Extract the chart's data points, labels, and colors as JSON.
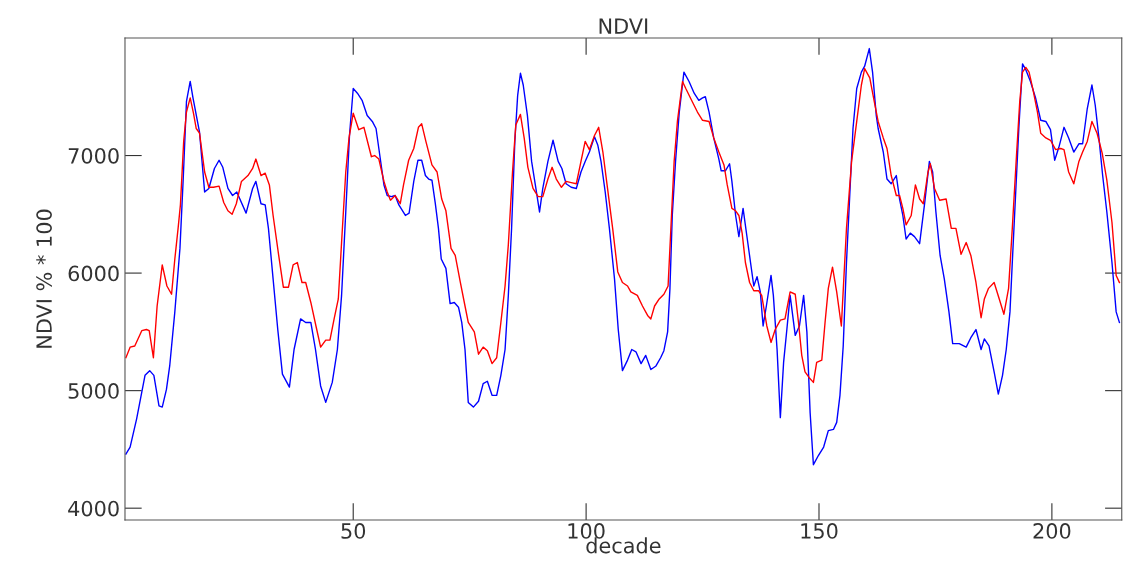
{
  "chart_data": {
    "type": "line",
    "title": "NDVI",
    "xlabel": "decade",
    "ylabel": "NDVI % * 100",
    "xlim": [
      1,
      215
    ],
    "xticks": [
      50,
      100,
      150,
      200
    ],
    "ylim": [
      3900,
      8000
    ],
    "yticks": [
      4000,
      5000,
      6000,
      7000
    ],
    "grid": false,
    "marker": "none",
    "line_style": "solid",
    "series": [
      {
        "color": "#0000ff",
        "x": [
          1.2,
          2.1,
          3.5,
          5.3,
          6.3,
          7.2,
          8.3,
          9.0,
          9.9,
          10.6,
          11.7,
          12.8,
          13.5,
          14.2,
          15.0,
          15.6,
          17.0,
          18.1,
          19.0,
          20.2,
          21.2,
          22.0,
          23.1,
          24.1,
          25.0,
          27.0,
          28.4,
          29.1,
          30.2,
          31.1,
          31.8,
          32.8,
          33.8,
          34.8,
          36.3,
          37.3,
          38.7,
          39.8,
          40.9,
          41.9,
          43.0,
          44.1,
          45.5,
          46.6,
          47.5,
          48.4,
          49.2,
          50.0,
          50.9,
          51.9,
          53.0,
          54.1,
          54.9,
          55.5,
          56.6,
          57.3,
          58.2,
          59.0,
          59.8,
          61.2,
          62.0,
          63.0,
          63.9,
          64.7,
          65.5,
          66.2,
          66.9,
          67.6,
          68.3,
          68.9,
          69.9,
          70.8,
          71.7,
          72.6,
          73.3,
          74.0,
          74.7,
          75.8,
          76.9,
          77.9,
          78.8,
          79.8,
          80.8,
          81.7,
          82.6,
          83.3,
          84.0,
          84.7,
          85.3,
          85.9,
          86.5,
          87.4,
          88.3,
          89.1,
          90.0,
          90.7,
          91.8,
          92.9,
          94.0,
          94.8,
          95.7,
          96.8,
          97.9,
          98.9,
          99.8,
          100.7,
          101.8,
          102.5,
          103.2,
          104.1,
          105.0,
          106.1,
          106.9,
          107.8,
          108.9,
          109.8,
          110.7,
          111.8,
          112.8,
          113.9,
          115.0,
          116.0,
          116.7,
          117.5,
          118.0,
          118.5,
          119.2,
          120.0,
          121.0,
          122.1,
          123.2,
          124.2,
          125.0,
          125.6,
          126.4,
          127.4,
          128.5,
          129.0,
          129.9,
          130.8,
          131.3,
          132.1,
          132.8,
          133.7,
          134.5,
          135.3,
          136.0,
          136.7,
          137.4,
          138.0,
          138.7,
          139.7,
          140.2,
          141.0,
          141.7,
          142.4,
          143.1,
          143.8,
          144.9,
          145.8,
          146.7,
          147.4,
          148.1,
          148.8,
          149.9,
          151.0,
          152.0,
          153.1,
          153.8,
          154.5,
          155.2,
          155.9,
          156.6,
          157.3,
          158.1,
          159.1,
          159.8,
          160.8,
          161.5,
          162.3,
          162.7,
          163.8,
          164.6,
          165.5,
          166.6,
          167.3,
          168.0,
          168.7,
          169.6,
          170.5,
          171.6,
          172.7,
          173.7,
          174.4,
          175.1,
          176.0,
          176.9,
          177.9,
          178.7,
          180.1,
          181.6,
          182.6,
          183.7,
          184.8,
          185.5,
          186.5,
          187.6,
          188.5,
          189.4,
          190.2,
          191.0,
          191.5,
          192.2,
          192.9,
          193.7,
          194.4,
          195.4,
          196.5,
          197.6,
          198.7,
          199.7,
          200.6,
          201.5,
          202.6,
          203.6,
          204.7,
          205.8,
          206.6,
          207.6,
          208.6,
          209.3,
          210.1,
          210.9,
          211.8,
          212.9,
          213.8,
          214.5
        ],
        "values": [
          4460,
          4520,
          4760,
          5130,
          5170,
          5130,
          4870,
          4860,
          5010,
          5210,
          5670,
          6210,
          6800,
          7460,
          7630,
          7490,
          7200,
          6690,
          6720,
          6890,
          6960,
          6900,
          6720,
          6660,
          6690,
          6510,
          6720,
          6780,
          6590,
          6580,
          6380,
          5950,
          5520,
          5140,
          5030,
          5350,
          5610,
          5580,
          5580,
          5350,
          5040,
          4900,
          5070,
          5350,
          5810,
          6520,
          7170,
          7570,
          7530,
          7470,
          7340,
          7290,
          7230,
          7060,
          6750,
          6660,
          6650,
          6660,
          6580,
          6490,
          6510,
          6780,
          6960,
          6960,
          6830,
          6800,
          6790,
          6600,
          6380,
          6120,
          6040,
          5740,
          5750,
          5710,
          5580,
          5350,
          4900,
          4860,
          4910,
          5060,
          5080,
          4960,
          4960,
          5130,
          5350,
          5810,
          6380,
          7120,
          7510,
          7700,
          7600,
          7340,
          6950,
          6750,
          6520,
          6720,
          6950,
          7130,
          6950,
          6890,
          6760,
          6730,
          6720,
          6860,
          6950,
          7030,
          7160,
          7090,
          6950,
          6690,
          6380,
          5950,
          5520,
          5170,
          5260,
          5350,
          5330,
          5230,
          5300,
          5180,
          5210,
          5280,
          5340,
          5500,
          5870,
          6490,
          6950,
          7370,
          7710,
          7630,
          7530,
          7470,
          7490,
          7500,
          7370,
          7150,
          6970,
          6870,
          6870,
          6930,
          6780,
          6490,
          6310,
          6550,
          6320,
          6090,
          5890,
          5970,
          5840,
          5550,
          5720,
          5980,
          5810,
          5350,
          4770,
          5240,
          5520,
          5810,
          5470,
          5550,
          5810,
          5500,
          4810,
          4370,
          4450,
          4520,
          4660,
          4670,
          4730,
          4960,
          5380,
          6090,
          6660,
          7230,
          7570,
          7710,
          7760,
          7910,
          7710,
          7340,
          7230,
          7030,
          6800,
          6760,
          6830,
          6630,
          6490,
          6290,
          6340,
          6310,
          6250,
          6600,
          6950,
          6860,
          6520,
          6150,
          5950,
          5670,
          5400,
          5400,
          5370,
          5450,
          5520,
          5350,
          5440,
          5380,
          5160,
          4970,
          5130,
          5350,
          5670,
          6090,
          6660,
          7230,
          7780,
          7730,
          7630,
          7490,
          7300,
          7290,
          7220,
          6960,
          7070,
          7240,
          7150,
          7030,
          7100,
          7100,
          7400,
          7600,
          7430,
          7150,
          6830,
          6520,
          6090,
          5670,
          5580
        ]
      },
      {
        "color": "#ff0000",
        "x": [
          1.2,
          2.1,
          3.1,
          4.6,
          5.6,
          6.2,
          7.1,
          7.9,
          9.0,
          10.0,
          11.0,
          11.7,
          12.4,
          12.9,
          13.6,
          14.2,
          15.0,
          15.7,
          16.3,
          17.0,
          18.1,
          19.0,
          20.0,
          21.2,
          22.2,
          23.1,
          24.0,
          24.9,
          26.0,
          27.4,
          28.4,
          29.1,
          30.2,
          31.1,
          32.0,
          32.8,
          34.0,
          35.0,
          36.1,
          37.1,
          38.0,
          39.0,
          39.8,
          40.9,
          42.0,
          43.0,
          44.1,
          45.0,
          45.9,
          46.8,
          47.5,
          48.4,
          49.1,
          50.0,
          51.2,
          52.3,
          53.0,
          53.9,
          54.6,
          55.5,
          56.6,
          57.3,
          58.0,
          59.0,
          60.1,
          60.8,
          61.9,
          63.0,
          64.0,
          64.7,
          65.6,
          66.9,
          68.0,
          69.0,
          69.9,
          71.0,
          71.9,
          73.0,
          74.0,
          74.7,
          76.0,
          76.9,
          77.9,
          78.8,
          79.8,
          80.8,
          81.7,
          82.6,
          83.3,
          84.2,
          84.9,
          85.9,
          86.7,
          87.5,
          88.6,
          89.7,
          90.7,
          91.8,
          92.7,
          93.6,
          94.7,
          95.7,
          96.8,
          97.9,
          98.9,
          99.8,
          100.7,
          101.8,
          102.7,
          103.6,
          104.6,
          105.7,
          106.8,
          107.8,
          108.9,
          109.6,
          111.0,
          112.1,
          113.2,
          113.9,
          114.7,
          115.7,
          116.7,
          117.6,
          118.2,
          118.9,
          119.6,
          120.7,
          121.4,
          122.4,
          123.9,
          125.0,
          126.4,
          127.4,
          128.5,
          129.6,
          130.3,
          131.3,
          132.1,
          132.8,
          133.5,
          134.2,
          135.1,
          136.0,
          137.0,
          137.7,
          138.8,
          139.7,
          140.6,
          141.7,
          142.7,
          143.8,
          144.9,
          145.6,
          146.3,
          147.0,
          147.9,
          148.8,
          149.5,
          150.6,
          151.3,
          152.0,
          152.9,
          153.8,
          154.8,
          155.9,
          157.0,
          158.1,
          159.1,
          159.8,
          160.9,
          162.0,
          162.7,
          163.8,
          164.6,
          165.5,
          166.6,
          167.3,
          168.0,
          168.7,
          169.8,
          170.7,
          171.6,
          172.4,
          173.4,
          173.9,
          174.8,
          175.9,
          177.3,
          178.4,
          179.4,
          180.5,
          181.6,
          182.6,
          183.7,
          184.8,
          185.5,
          186.4,
          187.6,
          188.7,
          189.7,
          190.7,
          191.5,
          192.4,
          193.1,
          193.7,
          194.4,
          195.1,
          195.9,
          196.9,
          197.6,
          198.7,
          199.7,
          200.8,
          201.9,
          202.6,
          203.6,
          204.7,
          205.8,
          206.6,
          207.6,
          208.6,
          209.7,
          210.8,
          211.8,
          212.9,
          213.8,
          214.5
        ],
        "values": [
          5280,
          5370,
          5380,
          5510,
          5520,
          5510,
          5280,
          5720,
          6070,
          5890,
          5820,
          6120,
          6380,
          6580,
          7120,
          7370,
          7490,
          7360,
          7230,
          7190,
          6860,
          6730,
          6730,
          6740,
          6600,
          6530,
          6500,
          6590,
          6780,
          6830,
          6890,
          6970,
          6830,
          6850,
          6750,
          6490,
          6150,
          5880,
          5880,
          6070,
          6090,
          5920,
          5920,
          5750,
          5550,
          5370,
          5430,
          5430,
          5610,
          5780,
          6260,
          6860,
          7150,
          7360,
          7220,
          7240,
          7130,
          6990,
          7000,
          6970,
          6780,
          6690,
          6620,
          6660,
          6590,
          6750,
          6960,
          7060,
          7240,
          7270,
          7120,
          6920,
          6860,
          6630,
          6530,
          6210,
          6150,
          5920,
          5720,
          5580,
          5500,
          5310,
          5370,
          5340,
          5230,
          5280,
          5580,
          5890,
          6240,
          6860,
          7260,
          7350,
          7150,
          6900,
          6720,
          6650,
          6650,
          6800,
          6900,
          6800,
          6730,
          6780,
          6770,
          6760,
          6950,
          7120,
          7050,
          7170,
          7240,
          7030,
          6720,
          6380,
          6010,
          5920,
          5890,
          5840,
          5810,
          5720,
          5640,
          5610,
          5720,
          5780,
          5820,
          5890,
          6380,
          6950,
          7290,
          7630,
          7570,
          7490,
          7370,
          7300,
          7290,
          7150,
          7030,
          6920,
          6750,
          6550,
          6530,
          6490,
          6340,
          6090,
          5920,
          5850,
          5850,
          5810,
          5550,
          5410,
          5520,
          5600,
          5610,
          5840,
          5820,
          5580,
          5300,
          5160,
          5110,
          5070,
          5240,
          5260,
          5580,
          5870,
          6050,
          5840,
          5550,
          6380,
          6950,
          7290,
          7600,
          7740,
          7660,
          7430,
          7290,
          7150,
          7060,
          6830,
          6660,
          6660,
          6550,
          6410,
          6490,
          6750,
          6630,
          6590,
          6860,
          6930,
          6720,
          6620,
          6630,
          6380,
          6380,
          6160,
          6260,
          6150,
          5920,
          5620,
          5780,
          5870,
          5920,
          5780,
          5650,
          5870,
          6380,
          7000,
          7460,
          7710,
          7750,
          7710,
          7570,
          7370,
          7190,
          7150,
          7130,
          7050,
          7060,
          7050,
          6860,
          6760,
          6950,
          7030,
          7120,
          7290,
          7190,
          7020,
          6790,
          6430,
          5980,
          5920
        ]
      }
    ]
  }
}
